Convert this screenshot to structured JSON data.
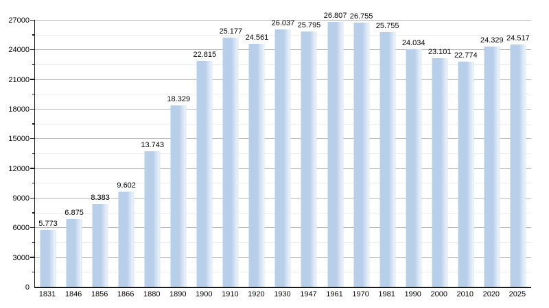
{
  "chart_data": {
    "type": "bar",
    "title": "",
    "xlabel": "",
    "ylabel": "",
    "categories": [
      "1831",
      "1846",
      "1856",
      "1866",
      "1880",
      "1890",
      "1900",
      "1910",
      "1920",
      "1930",
      "1947",
      "1961",
      "1970",
      "1981",
      "1990",
      "2000",
      "2010",
      "2020",
      "2025"
    ],
    "values": [
      5773,
      6875,
      8383,
      9602,
      13743,
      18329,
      22815,
      25177,
      24561,
      26037,
      25795,
      26807,
      26755,
      25755,
      24034,
      23101,
      22774,
      24329,
      24517
    ],
    "value_labels": [
      "5.773",
      "6.875",
      "8.383",
      "9.602",
      "13.743",
      "18.329",
      "22.815",
      "25.177",
      "24.561",
      "26.037",
      "25.795",
      "26.807",
      "26.755",
      "25.755",
      "24.034",
      "23.101",
      "22.774",
      "24.329",
      "24.517"
    ],
    "ylim": [
      0,
      27000
    ],
    "y_major_step": 3000,
    "y_minor_step": 1500,
    "y_ticks": [
      "0",
      "3000",
      "6000",
      "9000",
      "12000",
      "15000",
      "18000",
      "21000",
      "24000",
      "27000"
    ],
    "grid": true,
    "legend": "none",
    "colors": {
      "background": "#ffffff",
      "bar": "#b7cfe9",
      "bar_fade": "#e9f1f9",
      "bar_edge": "#d8e6f3",
      "grid_major": "#b4b4b4",
      "grid_minor": "#ececec",
      "axis": "#1a1a1a",
      "text": "#000000"
    }
  }
}
